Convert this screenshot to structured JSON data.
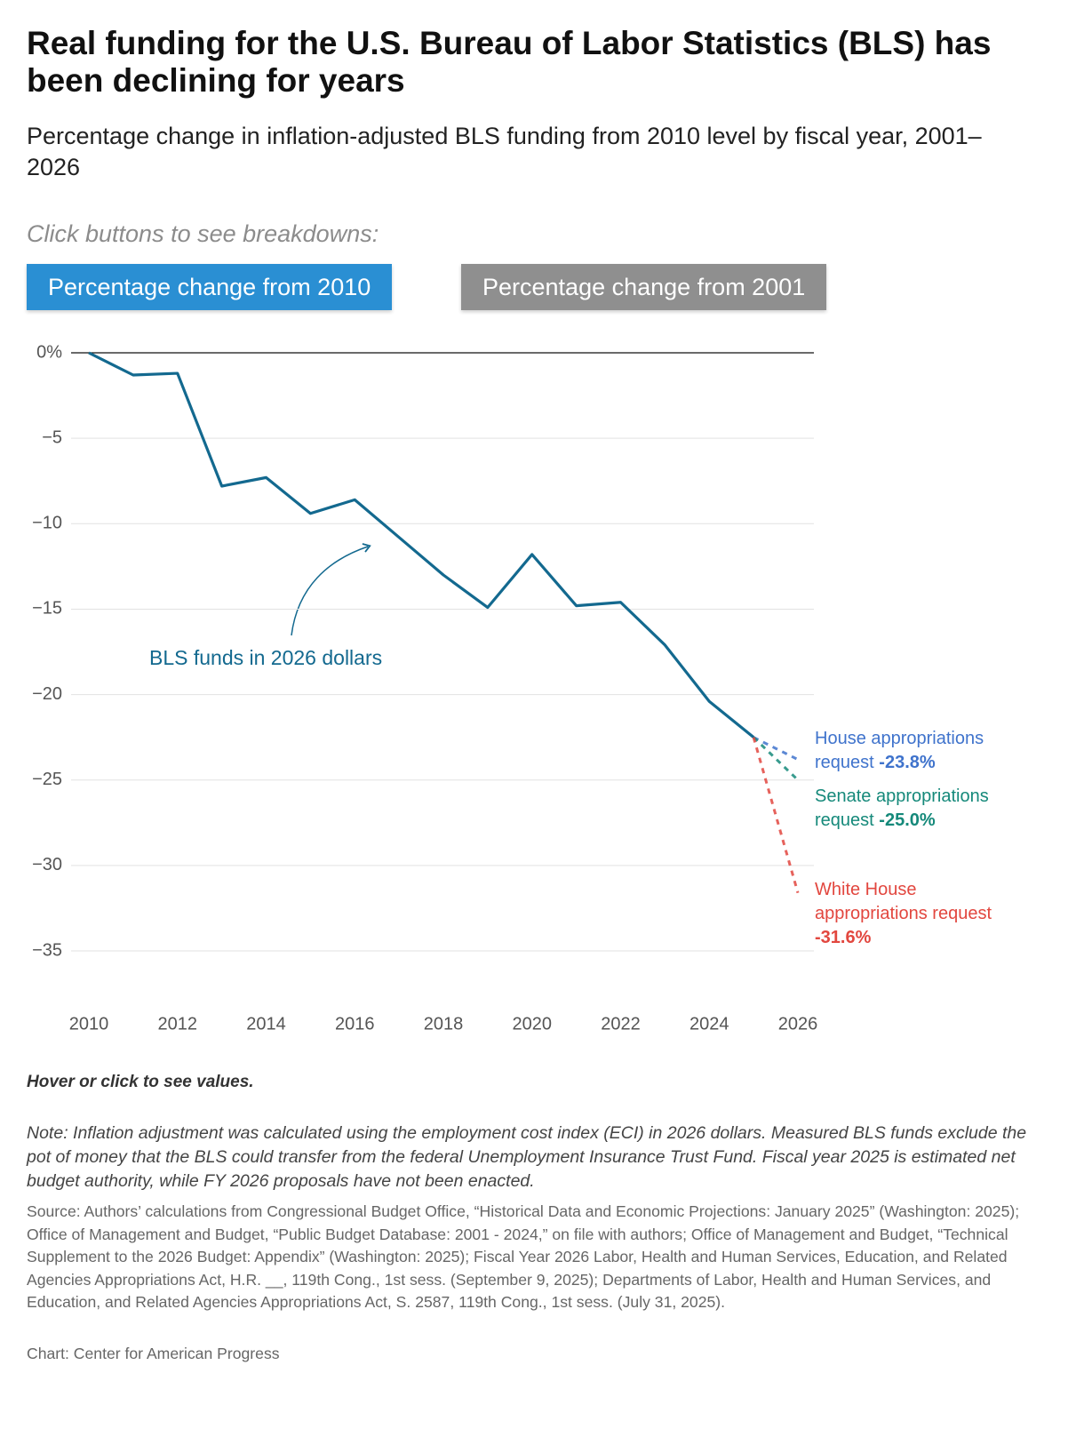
{
  "header": {
    "title": "Real funding for the U.S. Bureau of Labor Statistics (BLS) has been declining for years",
    "subtitle": "Percentage change in inflation-adjusted BLS funding from 2010 level by fiscal year, 2001–2026"
  },
  "controls": {
    "prompt": "Click buttons to see breakdowns:",
    "buttons": [
      {
        "label": "Percentage change from 2010",
        "active": true
      },
      {
        "label": "Percentage change from 2001",
        "active": false
      }
    ]
  },
  "chart_data": {
    "type": "line",
    "x": [
      2010,
      2011,
      2012,
      2013,
      2014,
      2015,
      2016,
      2017,
      2018,
      2019,
      2020,
      2021,
      2022,
      2023,
      2024,
      2025,
      2026
    ],
    "xlim": [
      2010,
      2026
    ],
    "xticks": [
      2010,
      2012,
      2014,
      2016,
      2018,
      2020,
      2022,
      2024,
      2026
    ],
    "ylim": [
      -37.5,
      0
    ],
    "yticks": [
      {
        "value": 0,
        "label": "0%"
      },
      {
        "value": -5,
        "label": "−5"
      },
      {
        "value": -10,
        "label": "−10"
      },
      {
        "value": -15,
        "label": "−15"
      },
      {
        "value": -20,
        "label": "−20"
      },
      {
        "value": -25,
        "label": "−25"
      },
      {
        "value": -30,
        "label": "−30"
      },
      {
        "value": -35,
        "label": "−35"
      }
    ],
    "grid": true,
    "series": [
      {
        "name": "BLS funds in 2026 dollars",
        "color": "#13698f",
        "style": "solid",
        "values": [
          0,
          -1.3,
          -1.2,
          -7.8,
          -7.3,
          -9.4,
          -8.6,
          -10.8,
          -13.0,
          -14.9,
          -11.8,
          -14.8,
          -14.6,
          -17.1,
          -20.4,
          -22.5,
          null
        ]
      },
      {
        "name": "House appropriations request",
        "color": "#3f73cc",
        "style": "dashed",
        "values": [
          null,
          null,
          null,
          null,
          null,
          null,
          null,
          null,
          null,
          null,
          null,
          null,
          null,
          null,
          null,
          -22.5,
          -23.8
        ],
        "value_labels": [
          null,
          null,
          null,
          null,
          null,
          null,
          null,
          null,
          null,
          null,
          null,
          null,
          null,
          null,
          null,
          null,
          "-23.8%"
        ]
      },
      {
        "name": "Senate appropriations request",
        "color": "#15897a",
        "style": "dashed",
        "values": [
          null,
          null,
          null,
          null,
          null,
          null,
          null,
          null,
          null,
          null,
          null,
          null,
          null,
          null,
          null,
          -22.5,
          -25.0
        ],
        "value_labels": [
          null,
          null,
          null,
          null,
          null,
          null,
          null,
          null,
          null,
          null,
          null,
          null,
          null,
          null,
          null,
          null,
          "-25.0%"
        ]
      },
      {
        "name": "White House appropriations request",
        "color": "#e2473f",
        "style": "dashed",
        "values": [
          null,
          null,
          null,
          null,
          null,
          null,
          null,
          null,
          null,
          null,
          null,
          null,
          null,
          null,
          null,
          -22.5,
          -31.6
        ],
        "value_labels": [
          null,
          null,
          null,
          null,
          null,
          null,
          null,
          null,
          null,
          null,
          null,
          null,
          null,
          null,
          null,
          null,
          "-31.6%"
        ]
      }
    ]
  },
  "footer": {
    "hint": "Hover or click to see values.",
    "note": "Note: Inflation adjustment was calculated using the employment cost index (ECI) in 2026 dollars. Measured BLS funds exclude the pot of money that the BLS could transfer from the federal Unemployment Insurance Trust Fund. Fiscal year 2025 is estimated net budget authority, while FY 2026 proposals have not been enacted.",
    "source": "Source: Authors’ calculations from Congressional Budget Office, “Historical Data and Economic Projections: January 2025” (Washington: 2025); Office of Management and Budget, “Public Budget Database: 2001 - 2024,” on file with authors; Office of Management and Budget, “Technical Supplement to the 2026 Budget: Appendix” (Washington: 2025); Fiscal Year 2026 Labor, Health and Human Services, Education, and Related Agencies Appropriations Act, H.R. __, 119th Cong., 1st sess. (September 9, 2025); Departments of Labor, Health and Human Services, and Education, and Related Agencies Appropriations Act, S. 2587, 119th Cong., 1st sess. (July 31, 2025).",
    "credit": "Chart: Center for American Progress"
  }
}
